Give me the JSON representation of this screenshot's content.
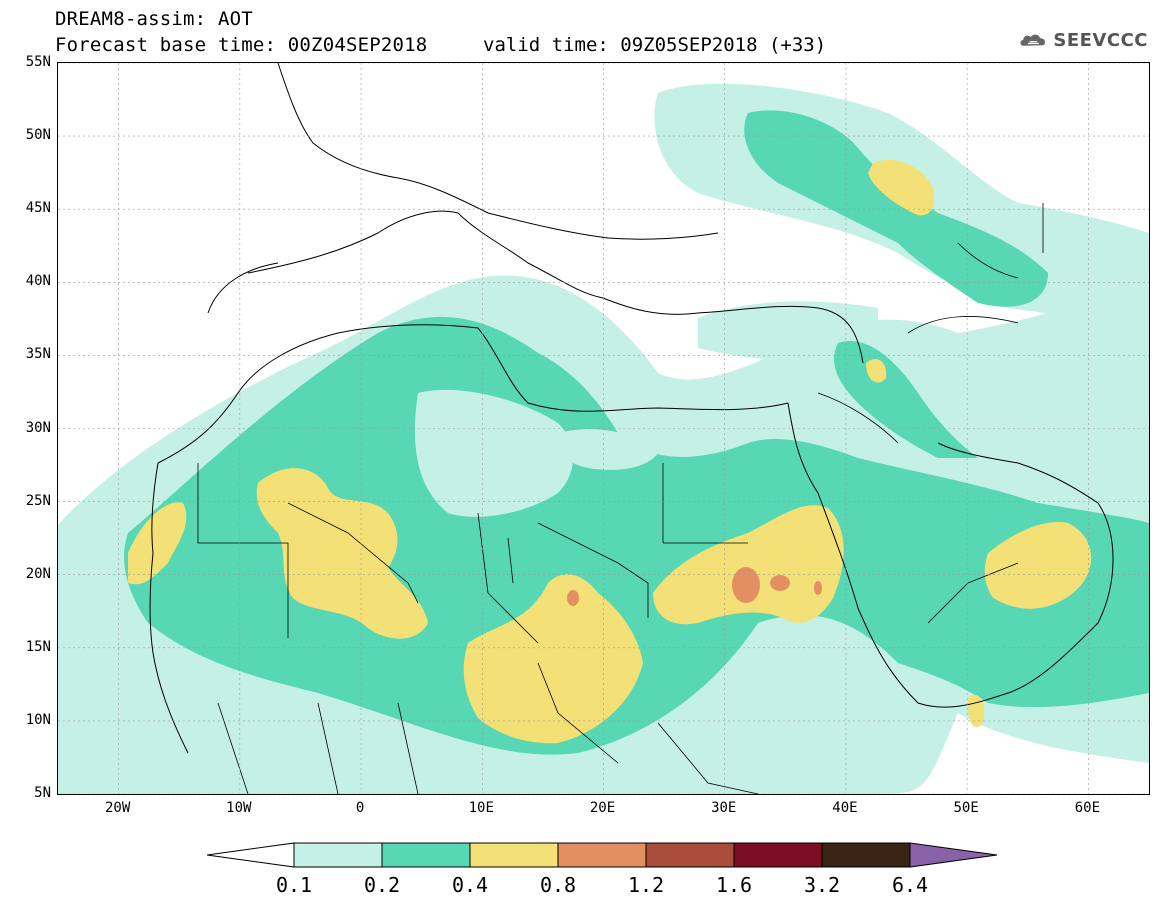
{
  "header": {
    "title_line_1": "DREAM8-assim: AOT",
    "title_line_2": "Forecast base time: 00Z04SEP2018",
    "valid_time": "valid time: 09Z05SEP2018 (+33)",
    "logo_text": "SEEVCCC"
  },
  "map": {
    "lat_labels": [
      "55N",
      "50N",
      "45N",
      "40N",
      "35N",
      "30N",
      "25N",
      "20N",
      "15N",
      "10N",
      "5N"
    ],
    "lon_labels": [
      "20W",
      "10W",
      "0",
      "10E",
      "20E",
      "30E",
      "40E",
      "50E",
      "60E"
    ],
    "lat_values": [
      55,
      50,
      45,
      40,
      35,
      30,
      25,
      20,
      15,
      10,
      5
    ],
    "lon_values": [
      -20,
      -10,
      0,
      10,
      20,
      30,
      40,
      50,
      60
    ],
    "extent": {
      "lon_min": -25,
      "lon_max": 65,
      "lat_min": 5,
      "lat_max": 55
    }
  },
  "legend": {
    "levels": [
      "0.1",
      "0.2",
      "0.4",
      "0.8",
      "1.2",
      "1.6",
      "3.2",
      "6.4"
    ],
    "colors": [
      "#c5f0e6",
      "#57d7b4",
      "#f3e178",
      "#e48f62",
      "#a84d3a",
      "#7b0e22",
      "#3a2414",
      "#8a62a8"
    ],
    "under_color": "#ffffff"
  }
}
